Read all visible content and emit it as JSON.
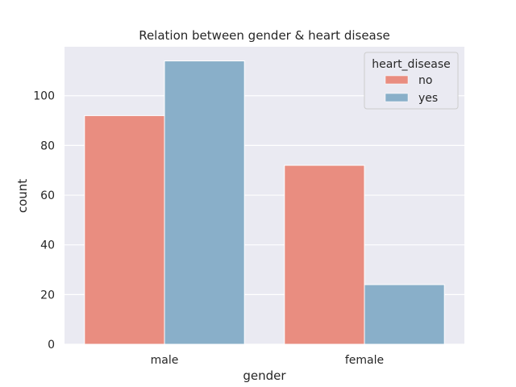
{
  "chart_data": {
    "type": "bar",
    "title": "Relation between gender & heart disease",
    "xlabel": "gender",
    "ylabel": "count",
    "categories": [
      "male",
      "female"
    ],
    "series": [
      {
        "name": "no",
        "values": [
          92,
          72
        ],
        "color": "#e98d80"
      },
      {
        "name": "yes",
        "values": [
          114,
          24
        ],
        "color": "#89afc9"
      }
    ],
    "yticks": [
      0,
      20,
      40,
      60,
      80,
      100
    ],
    "ylim": [
      0,
      119.7
    ],
    "grid": true,
    "legend": {
      "title": "heart_disease",
      "placement": "top-right"
    },
    "colors": {
      "plot_background": "#eaeaf2",
      "grid": "#ffffff"
    }
  }
}
